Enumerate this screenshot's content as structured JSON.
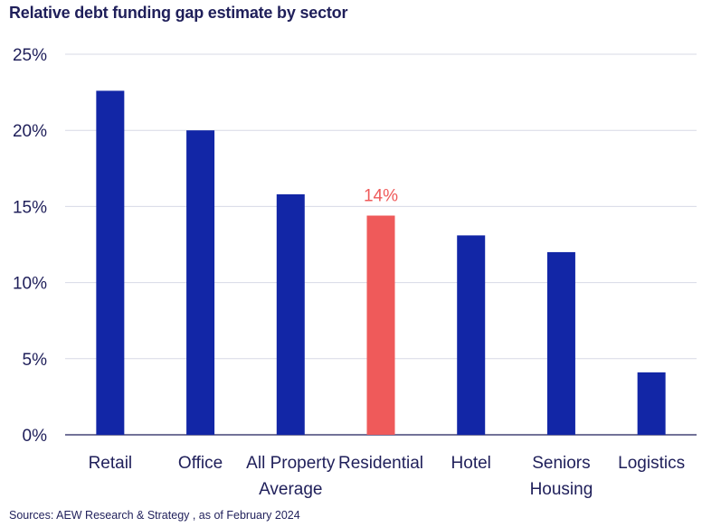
{
  "title": "Relative debt funding gap estimate by sector",
  "source": "Sources: AEW Research & Strategy , as of February 2024",
  "colors": {
    "bar": "#1226a6",
    "highlight": "#ef5a5a",
    "grid": "#d7d9e6",
    "axis": "#1f1f5a"
  },
  "chart_data": {
    "type": "bar",
    "categories": [
      [
        "Retail"
      ],
      [
        "Office"
      ],
      [
        "All Property",
        "Average"
      ],
      [
        "Residential"
      ],
      [
        "Hotel"
      ],
      [
        "Seniors",
        "Housing"
      ],
      [
        "Logistics"
      ]
    ],
    "values": [
      22.6,
      20.0,
      15.8,
      14.4,
      13.1,
      12.0,
      4.1
    ],
    "highlight_index": 3,
    "data_labels": [
      {
        "index": 3,
        "text": "14%"
      }
    ],
    "ylim": [
      0,
      25
    ],
    "yticks": [
      0,
      5,
      10,
      15,
      20,
      25
    ],
    "ytick_labels": [
      "0%",
      "5%",
      "10%",
      "15%",
      "20%",
      "25%"
    ],
    "grid": true,
    "xlabel": "",
    "ylabel": ""
  }
}
